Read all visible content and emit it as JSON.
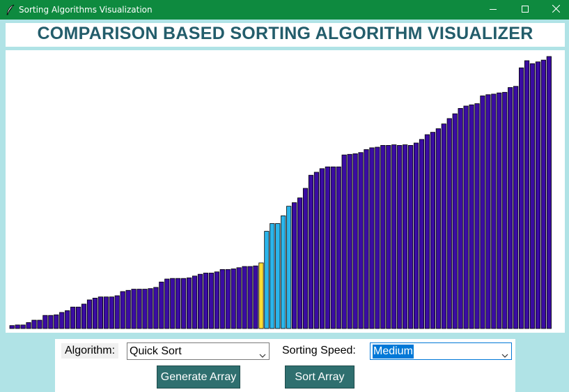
{
  "window": {
    "title": "Sorting Algorithms Visualization",
    "controls": [
      "minimize-icon",
      "maximize-icon",
      "close-icon"
    ]
  },
  "header": {
    "title": "COMPARISON BASED SORTING ALGORITHM VISUALIZER"
  },
  "colors": {
    "titlebar": "#0e8a3f",
    "header_text": "#235d6b",
    "bar_default": "#3a0ca3",
    "bar_pivot": "#ffdd33",
    "bar_range": "#2bb5ea",
    "button": "#2f6f6f",
    "background": "#b0e3e6"
  },
  "array": {
    "values": [
      5,
      6,
      6,
      10,
      14,
      14,
      22,
      22,
      23,
      27,
      30,
      36,
      36,
      41,
      48,
      51,
      53,
      53,
      53,
      55,
      62,
      64,
      66,
      66,
      66,
      67,
      69,
      78,
      83,
      84,
      84,
      84,
      85,
      88,
      91,
      93,
      93,
      95,
      99,
      99,
      100,
      102,
      104,
      104,
      105,
      110,
      163,
      176,
      176,
      189,
      205,
      211,
      219,
      235,
      257,
      262,
      268,
      271,
      271,
      271,
      291,
      292,
      293,
      295,
      300,
      303,
      304,
      307,
      307,
      308,
      307,
      308,
      307,
      311,
      317,
      325,
      329,
      335,
      343,
      352,
      360,
      369,
      373,
      375,
      377,
      390,
      392,
      393,
      395,
      396,
      404,
      406,
      437,
      449,
      444,
      447,
      450,
      456
    ],
    "highlights": {
      "pivot_index": 45,
      "range_start": 46,
      "range_end": 50
    }
  },
  "controls": {
    "algorithm_label": "Algorithm:",
    "algorithm_value": "Quick Sort",
    "speed_label": "Sorting Speed:",
    "speed_value": "Medium",
    "generate_button": "Generate Array",
    "sort_button": "Sort Array"
  }
}
